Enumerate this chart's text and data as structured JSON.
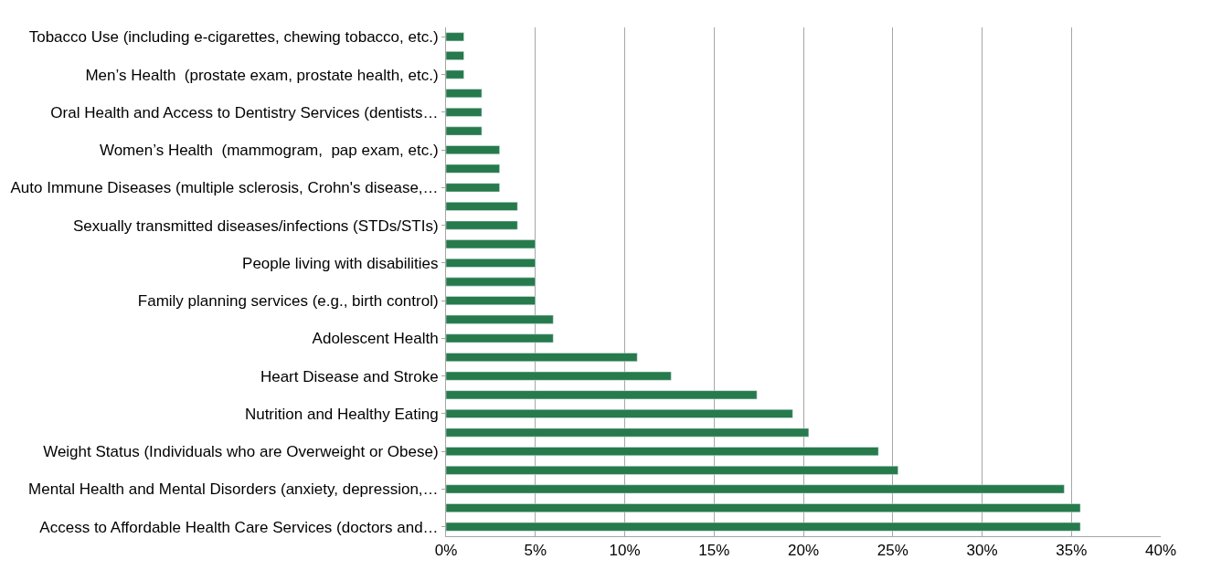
{
  "chart_data": {
    "type": "bar",
    "orientation": "horizontal",
    "categories": [
      "Tobacco Use (including e-cigarettes, chewing tobacco, etc.)",
      null,
      "Men’s Health  (prostate exam, prostate health, etc.)",
      null,
      "Oral Health and Access to Dentistry Services (dentists…",
      null,
      "Women’s Health  (mammogram,  pap exam, etc.)",
      null,
      "Auto Immune Diseases (multiple sclerosis, Crohn's disease,…",
      null,
      "Sexually transmitted diseases/infections (STDs/STIs)",
      null,
      "People living with disabilities",
      null,
      "Family planning services (e.g., birth control)",
      null,
      "Adolescent Health",
      null,
      "Heart Disease and Stroke",
      null,
      "Nutrition and Healthy Eating",
      null,
      "Weight Status (Individuals who are Overweight or Obese)",
      null,
      "Mental Health and Mental Disorders (anxiety, depression,…",
      null,
      "Access to Affordable Health Care Services (doctors and…"
    ],
    "values": [
      1,
      1,
      1,
      2,
      2,
      2,
      3,
      3,
      3,
      4,
      4,
      5,
      5,
      5,
      5,
      6,
      6,
      10.7,
      12.6,
      17.4,
      19.4,
      20.3,
      24.2,
      25.3,
      34.6,
      35.5,
      35.5
    ],
    "color": "#267a4c",
    "xlim": [
      0,
      40
    ],
    "xticks": [
      {
        "value": 0,
        "label": "0%"
      },
      {
        "value": 5,
        "label": "5%"
      },
      {
        "value": 10,
        "label": "10%"
      },
      {
        "value": 15,
        "label": "15%"
      },
      {
        "value": 20,
        "label": "20%"
      },
      {
        "value": 25,
        "label": "25%"
      },
      {
        "value": 30,
        "label": "30%"
      },
      {
        "value": 35,
        "label": "35%"
      },
      {
        "value": 40,
        "label": "40%"
      }
    ],
    "grid": "x",
    "legend": false
  }
}
